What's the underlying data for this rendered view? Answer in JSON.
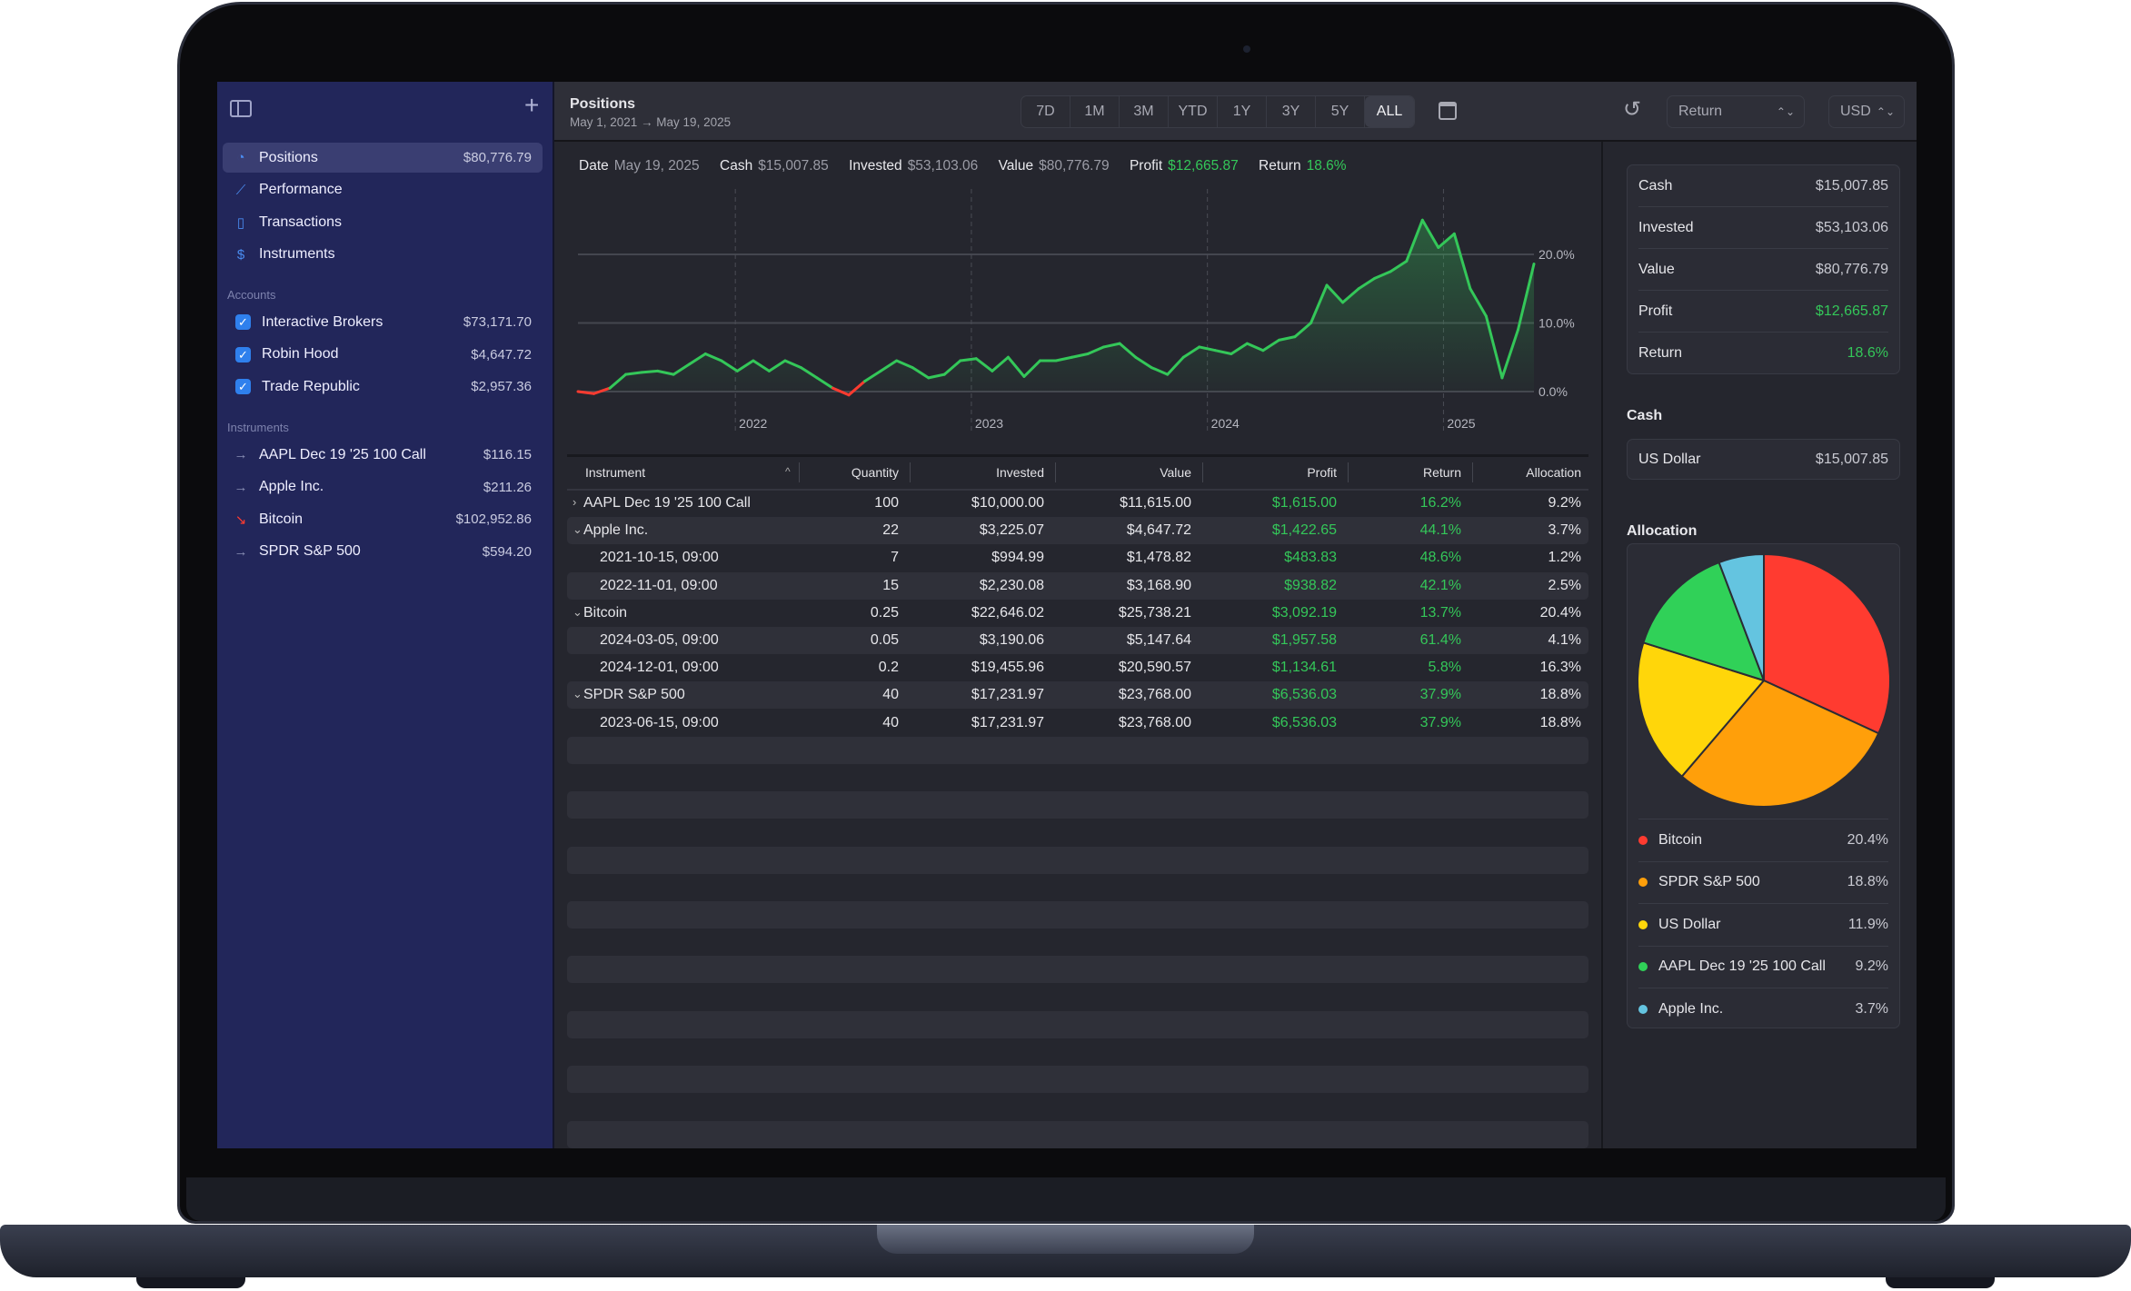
{
  "colors": {
    "accent": "#2f80ed",
    "positive": "#34c759",
    "negative": "#ff3b30",
    "sidebar": "#22265a"
  },
  "sidebar": {
    "toggle_icon": "sidebar-icon",
    "add_icon": "plus-icon",
    "nav": [
      {
        "label": "Positions",
        "value": "$80,776.79",
        "icon": "pie-icon",
        "selected": true
      },
      {
        "label": "Performance",
        "icon": "chart-icon"
      },
      {
        "label": "Transactions",
        "icon": "book-icon"
      },
      {
        "label": "Instruments",
        "icon": "dollar-circle-icon"
      }
    ],
    "accounts_label": "Accounts",
    "accounts": [
      {
        "label": "Interactive Brokers",
        "value": "$73,171.70",
        "checked": true
      },
      {
        "label": "Robin Hood",
        "value": "$4,647.72",
        "checked": true
      },
      {
        "label": "Trade Republic",
        "value": "$2,957.36",
        "checked": true
      }
    ],
    "instruments_label": "Instruments",
    "instruments": [
      {
        "label": "AAPL Dec 19 '25 100 Call",
        "value": "$116.15",
        "trend": "flat"
      },
      {
        "label": "Apple Inc.",
        "value": "$211.26",
        "trend": "flat"
      },
      {
        "label": "Bitcoin",
        "value": "$102,952.86",
        "trend": "down"
      },
      {
        "label": "SPDR S&P 500",
        "value": "$594.20",
        "trend": "flat"
      }
    ]
  },
  "header": {
    "title": "Positions",
    "subtitle": "May 1, 2021 → May 19, 2025",
    "ranges": [
      "7D",
      "1M",
      "3M",
      "YTD",
      "1Y",
      "3Y",
      "5Y",
      "ALL"
    ],
    "active_range": "ALL",
    "metric_select": "Return",
    "currency_select": "USD"
  },
  "stats": {
    "date_label": "Date",
    "date": "May 19, 2025",
    "cash_label": "Cash",
    "cash": "$15,007.85",
    "invested_label": "Invested",
    "invested": "$53,103.06",
    "value_label": "Value",
    "value": "$80,776.79",
    "profit_label": "Profit",
    "profit": "$12,665.87",
    "return_label": "Return",
    "return": "18.6%"
  },
  "chart_data": {
    "type": "area",
    "ylabel": "Return",
    "ylim": [
      -1,
      26
    ],
    "y_ticks": [
      {
        "v": 0,
        "label": "0.0%"
      },
      {
        "v": 10,
        "label": "10.0%"
      },
      {
        "v": 20,
        "label": "20.0%"
      }
    ],
    "x_domain_months": [
      0,
      48.6
    ],
    "x_ticks": [
      {
        "m": 8,
        "label": "2022"
      },
      {
        "m": 20,
        "label": "2023"
      },
      {
        "m": 32,
        "label": "2024"
      },
      {
        "m": 44,
        "label": "2025"
      }
    ],
    "values": [
      0,
      -0.3,
      0.5,
      2.5,
      2.8,
      3,
      2.5,
      4,
      5.5,
      4.5,
      3,
      4.5,
      3,
      4.5,
      3.5,
      2,
      0.5,
      -0.5,
      1.5,
      3,
      4.5,
      3.5,
      2,
      2.5,
      4.5,
      4.8,
      3,
      5,
      2.2,
      4.5,
      4.5,
      5,
      5.5,
      6.5,
      7,
      5,
      3.5,
      2.5,
      5,
      6.5,
      6,
      5.5,
      7,
      6,
      7.5,
      8,
      10,
      15.5,
      13,
      15,
      16.5,
      17.5,
      19,
      25,
      21,
      23,
      15,
      11,
      2,
      9,
      18.6
    ]
  },
  "table": {
    "columns": [
      "Instrument",
      "Quantity",
      "Invested",
      "Value",
      "Profit",
      "Return",
      "Allocation"
    ],
    "rows": [
      {
        "expander": ">",
        "name": "AAPL Dec 19 '25 100 Call",
        "qty": "100",
        "invested": "$10,000.00",
        "value": "$11,615.00",
        "profit": "$1,615.00",
        "ret": "16.2%",
        "alloc": "9.2%"
      },
      {
        "expander": "v",
        "name": "Apple Inc.",
        "qty": "22",
        "invested": "$3,225.07",
        "value": "$4,647.72",
        "profit": "$1,422.65",
        "ret": "44.1%",
        "alloc": "3.7%"
      },
      {
        "child": true,
        "name": "2021-10-15, 09:00",
        "qty": "7",
        "invested": "$994.99",
        "value": "$1,478.82",
        "profit": "$483.83",
        "ret": "48.6%",
        "alloc": "1.2%"
      },
      {
        "child": true,
        "name": "2022-11-01, 09:00",
        "qty": "15",
        "invested": "$2,230.08",
        "value": "$3,168.90",
        "profit": "$938.82",
        "ret": "42.1%",
        "alloc": "2.5%"
      },
      {
        "expander": "v",
        "name": "Bitcoin",
        "qty": "0.25",
        "invested": "$22,646.02",
        "value": "$25,738.21",
        "profit": "$3,092.19",
        "ret": "13.7%",
        "alloc": "20.4%"
      },
      {
        "child": true,
        "name": "2024-03-05, 09:00",
        "qty": "0.05",
        "invested": "$3,190.06",
        "value": "$5,147.64",
        "profit": "$1,957.58",
        "ret": "61.4%",
        "alloc": "4.1%"
      },
      {
        "child": true,
        "name": "2024-12-01, 09:00",
        "qty": "0.2",
        "invested": "$19,455.96",
        "value": "$20,590.57",
        "profit": "$1,134.61",
        "ret": "5.8%",
        "alloc": "16.3%"
      },
      {
        "expander": "v",
        "name": "SPDR S&P 500",
        "qty": "40",
        "invested": "$17,231.97",
        "value": "$23,768.00",
        "profit": "$6,536.03",
        "ret": "37.9%",
        "alloc": "18.8%"
      },
      {
        "child": true,
        "name": "2023-06-15, 09:00",
        "qty": "40",
        "invested": "$17,231.97",
        "value": "$23,768.00",
        "profit": "$6,536.03",
        "ret": "37.9%",
        "alloc": "18.8%"
      }
    ]
  },
  "summary": [
    {
      "label": "Cash",
      "value": "$15,007.85"
    },
    {
      "label": "Invested",
      "value": "$53,103.06"
    },
    {
      "label": "Value",
      "value": "$80,776.79"
    },
    {
      "label": "Profit",
      "value": "$12,665.87",
      "positive": true
    },
    {
      "label": "Return",
      "value": "18.6%",
      "positive": true
    }
  ],
  "cash": {
    "title": "Cash",
    "rows": [
      {
        "label": "US Dollar",
        "value": "$15,007.85"
      }
    ]
  },
  "allocation": {
    "title": "Allocation",
    "slices": [
      {
        "label": "Bitcoin",
        "value": 20.4,
        "display": "20.4%",
        "color": "#ff3b30"
      },
      {
        "label": "SPDR S&P 500",
        "value": 18.8,
        "display": "18.8%",
        "color": "#ff9f0a"
      },
      {
        "label": "US Dollar",
        "value": 11.9,
        "display": "11.9%",
        "color": "#ffd60a"
      },
      {
        "label": "AAPL Dec 19 '25 100 Call",
        "value": 9.2,
        "display": "9.2%",
        "color": "#30d158"
      },
      {
        "label": "Apple Inc.",
        "value": 3.7,
        "display": "3.7%",
        "color": "#64c4e0"
      }
    ]
  }
}
